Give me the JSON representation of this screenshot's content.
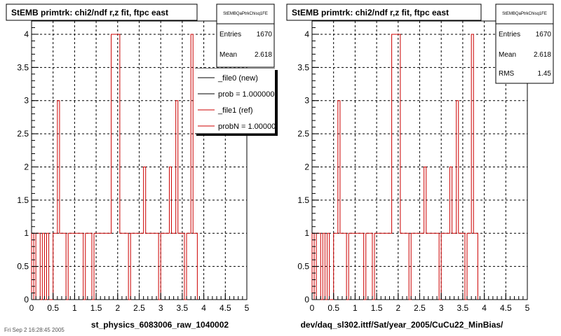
{
  "footer_stamp": "Fri Sep 2 16:28:45 2005",
  "panels": [
    {
      "title": "StEMB primtrk: chi2/ndf r,z fit, ftpc east",
      "xlabel": "st_physics_6083006_raw_1040002",
      "stats": {
        "name": "StEMBQaPtrkChisq1FE",
        "rows": [
          {
            "label": "Entries",
            "value": "1670"
          },
          {
            "label": "Mean",
            "value": "2.618"
          }
        ]
      },
      "legend": {
        "entries": [
          {
            "label": "_file0 (new)",
            "color": "#000000"
          },
          {
            "label": "prob = 1.000000",
            "color": "#000000"
          },
          {
            "label": "_file1 (ref)",
            "color": "#cc0000"
          },
          {
            "label": "probN = 1.000000",
            "color": "#cc0000"
          }
        ]
      }
    },
    {
      "title": "StEMB primtrk: chi2/ndf r,z fit, ftpc east",
      "xlabel": "dev/daq_sl302.ittf/Sat/year_2005/CuCu22_MinBias/",
      "stats": {
        "name": "StEMBQaPtrkChisq1FE",
        "rows": [
          {
            "label": "Entries",
            "value": "1670"
          },
          {
            "label": "Mean",
            "value": "2.618"
          },
          {
            "label": "RMS",
            "value": "1.45"
          }
        ]
      }
    }
  ],
  "chart_data": [
    {
      "type": "histogram",
      "title": "StEMB primtrk: chi2/ndf r,z fit, ftpc east",
      "xlabel": "st_physics_6083006_raw_1040002",
      "ylabel": "",
      "xlim": [
        0,
        5
      ],
      "ylim": [
        0,
        4.2
      ],
      "xticks": [
        "0",
        "0.5",
        "1",
        "1.5",
        "2",
        "2.5",
        "3",
        "3.5",
        "4",
        "4.5",
        "5"
      ],
      "yticks": [
        "0",
        "0.5",
        "1",
        "1.5",
        "2",
        "2.5",
        "3",
        "3.5",
        "4"
      ],
      "grid": true,
      "bin_width": 0.05,
      "series": [
        {
          "name": "_file1 (ref)",
          "color": "#cc0000",
          "values": [
            1,
            0,
            1,
            1,
            0,
            1,
            0,
            1,
            0,
            0,
            1,
            1,
            3,
            1,
            1,
            1,
            0,
            1,
            1,
            1,
            1,
            1,
            1,
            1,
            0,
            1,
            1,
            1,
            0,
            1,
            1,
            1,
            1,
            1,
            1,
            1,
            1,
            4,
            4,
            4,
            4,
            1,
            1,
            1,
            1,
            0,
            1,
            1,
            1,
            1,
            1,
            1,
            2,
            1,
            1,
            1,
            1,
            1,
            1,
            0,
            1,
            1,
            1,
            1,
            2,
            1,
            1,
            3,
            1,
            1,
            1,
            0,
            1,
            1,
            4,
            1,
            1
          ]
        }
      ]
    },
    {
      "type": "histogram",
      "title": "StEMB primtrk: chi2/ndf r,z fit, ftpc east",
      "xlabel": "dev/daq_sl302.ittf/Sat/year_2005/CuCu22_MinBias/",
      "ylabel": "",
      "xlim": [
        0,
        5
      ],
      "ylim": [
        0,
        4.2
      ],
      "xticks": [
        "0",
        "0.5",
        "1",
        "1.5",
        "2",
        "2.5",
        "3",
        "3.5",
        "4",
        "4.5",
        "5"
      ],
      "yticks": [
        "0",
        "0.5",
        "1",
        "1.5",
        "2",
        "2.5",
        "3",
        "3.5",
        "4"
      ],
      "grid": true,
      "bin_width": 0.05,
      "series": [
        {
          "name": "",
          "color": "#cc0000",
          "values": [
            1,
            0,
            1,
            1,
            0,
            1,
            0,
            1,
            0,
            0,
            1,
            1,
            3,
            1,
            1,
            1,
            0,
            1,
            1,
            1,
            1,
            1,
            1,
            1,
            0,
            1,
            1,
            1,
            0,
            1,
            1,
            1,
            1,
            1,
            1,
            1,
            1,
            4,
            4,
            4,
            4,
            1,
            1,
            1,
            1,
            0,
            1,
            1,
            1,
            1,
            1,
            1,
            2,
            1,
            1,
            1,
            1,
            1,
            1,
            0,
            1,
            1,
            1,
            1,
            2,
            1,
            1,
            3,
            1,
            1,
            1,
            0,
            1,
            1,
            4,
            1,
            1
          ]
        }
      ]
    }
  ]
}
